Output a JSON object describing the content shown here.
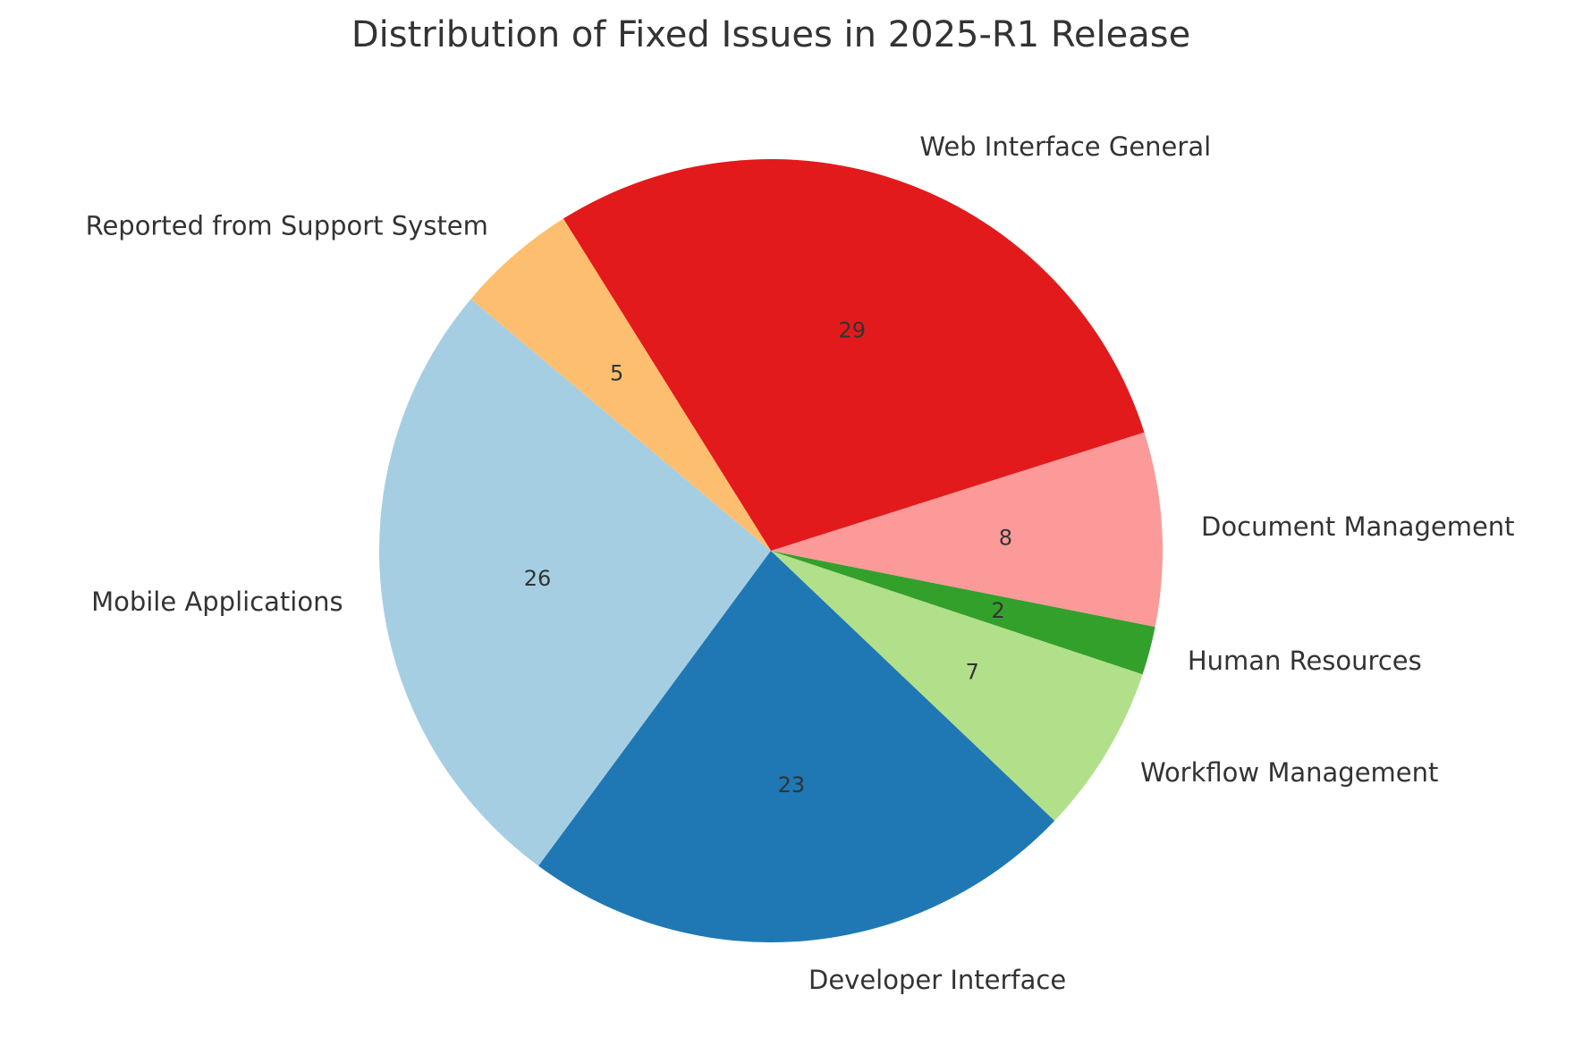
{
  "chart_data": {
    "type": "pie",
    "title": "Distribution of Fixed Issues in 2025-R1 Release",
    "slices": [
      {
        "label": "Mobile Applications",
        "value": 26,
        "color": "#a6cee3"
      },
      {
        "label": "Developer Interface",
        "value": 23,
        "color": "#1f78b4"
      },
      {
        "label": "Workflow Management",
        "value": 7,
        "color": "#b2df8a"
      },
      {
        "label": "Human Resources",
        "value": 2,
        "color": "#33a02c"
      },
      {
        "label": "Document Management",
        "value": 8,
        "color": "#fb9a99"
      },
      {
        "label": "Web Interface General",
        "value": 29,
        "color": "#e31a1c"
      },
      {
        "label": "Reported from Support System",
        "value": 5,
        "color": "#fdbf6f"
      }
    ],
    "start_angle_deg": 140,
    "direction": "counterclockwise",
    "legend": "none"
  }
}
